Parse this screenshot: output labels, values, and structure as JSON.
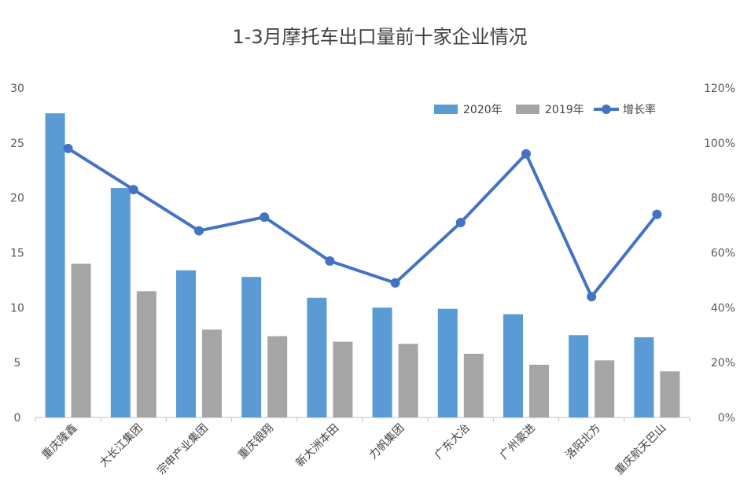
{
  "chart_data": {
    "type": "bar",
    "title": "1-3月摩托车出口量前十家企业情况",
    "categories": [
      "重庆隆鑫",
      "大长江集团",
      "宗申产业集团",
      "重庆银翔",
      "新大洲本田",
      "力帆集团",
      "广东大冶",
      "广州豪进",
      "洛阳北方",
      "重庆航天巴山"
    ],
    "series": [
      {
        "name": "2020年",
        "kind": "bar",
        "axis": "left",
        "color": "#5b9bd5",
        "values": [
          27.7,
          20.9,
          13.4,
          12.8,
          10.9,
          10.0,
          9.9,
          9.4,
          7.5,
          7.3
        ]
      },
      {
        "name": "2019年",
        "kind": "bar",
        "axis": "left",
        "color": "#a5a5a5",
        "values": [
          14.0,
          11.5,
          8.0,
          7.4,
          6.9,
          6.7,
          5.8,
          4.8,
          5.2,
          4.2
        ]
      },
      {
        "name": "增长率",
        "kind": "line",
        "axis": "right",
        "color": "#4472c4",
        "values": [
          98,
          83,
          68,
          73,
          57,
          49,
          71,
          96,
          44,
          74
        ]
      }
    ],
    "ylim_left": [
      0,
      30
    ],
    "yticks_left": [
      "0",
      "5",
      "10",
      "15",
      "20",
      "25",
      "30"
    ],
    "ylim_right": [
      0,
      120
    ],
    "yticks_right": [
      "0%",
      "20%",
      "40%",
      "60%",
      "80%",
      "100%",
      "120%"
    ],
    "grid": false,
    "legend_position": "top-right"
  }
}
